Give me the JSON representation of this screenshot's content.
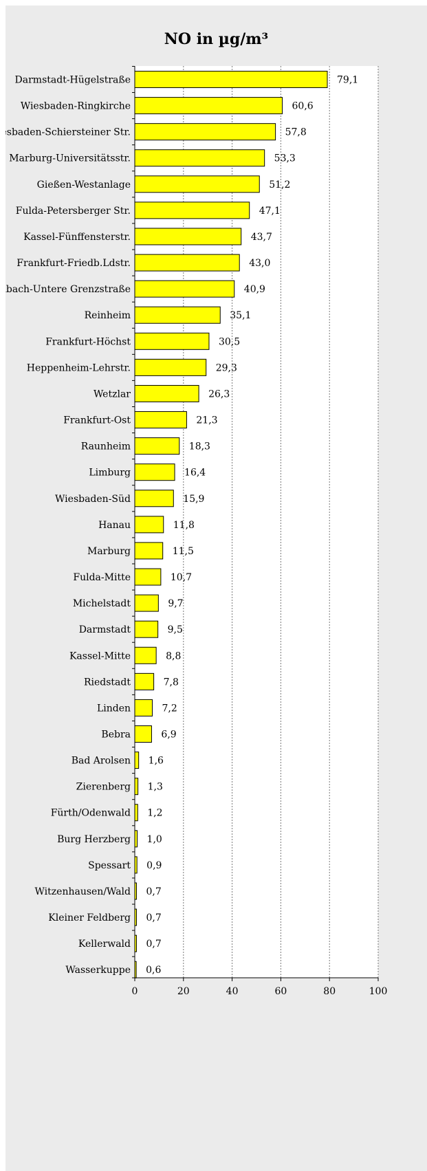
{
  "chart_data": {
    "type": "bar",
    "orientation": "horizontal",
    "title": "NO in µg/m³",
    "xlabel": "",
    "ylabel": "",
    "xlim": [
      0,
      100
    ],
    "xticks": [
      "0",
      "20",
      "40",
      "60",
      "80",
      "100"
    ],
    "grid": "vertical dashed",
    "bar_color": "#ffff00",
    "categories": [
      "Darmstadt-Hügelstraße",
      "Wiesbaden-Ringkirche",
      "Wiesbaden-Schiersteiner Str.",
      "Marburg-Universitätsstr.",
      "Gießen-Westanlage",
      "Fulda-Petersberger Str.",
      "Kassel-Fünffensterstr.",
      "Frankfurt-Friedb.Ldstr.",
      "Offenbach-Untere Grenzstraße",
      "Reinheim",
      "Frankfurt-Höchst",
      "Heppenheim-Lehrstr.",
      "Wetzlar",
      "Frankfurt-Ost",
      "Raunheim",
      "Limburg",
      "Wiesbaden-Süd",
      "Hanau",
      "Marburg",
      "Fulda-Mitte",
      "Michelstadt",
      "Darmstadt",
      "Kassel-Mitte",
      "Riedstadt",
      "Linden",
      "Bebra",
      "Bad Arolsen",
      "Zierenberg",
      "Fürth/Odenwald",
      "Burg Herzberg",
      "Spessart",
      "Witzenhausen/Wald",
      "Kleiner Feldberg",
      "Kellerwald",
      "Wasserkuppe"
    ],
    "values": [
      79.1,
      60.6,
      57.8,
      53.3,
      51.2,
      47.1,
      43.7,
      43.0,
      40.9,
      35.1,
      30.5,
      29.3,
      26.3,
      21.3,
      18.3,
      16.4,
      15.9,
      11.8,
      11.5,
      10.7,
      9.7,
      9.5,
      8.8,
      7.8,
      7.2,
      6.9,
      1.6,
      1.3,
      1.2,
      1.0,
      0.9,
      0.7,
      0.7,
      0.7,
      0.6
    ],
    "value_labels": [
      "79,1",
      "60,6",
      "57,8",
      "53,3",
      "51,2",
      "47,1",
      "43,7",
      "43,0",
      "40,9",
      "35,1",
      "30,5",
      "29,3",
      "26,3",
      "21,3",
      "18,3",
      "16,4",
      "15,9",
      "11,8",
      "11,5",
      "10,7",
      "9,7",
      "9,5",
      "8,8",
      "7,8",
      "7,2",
      "6,9",
      "1,6",
      "1,3",
      "1,2",
      "1,0",
      "0,9",
      "0,7",
      "0,7",
      "0,7",
      "0,6"
    ]
  }
}
